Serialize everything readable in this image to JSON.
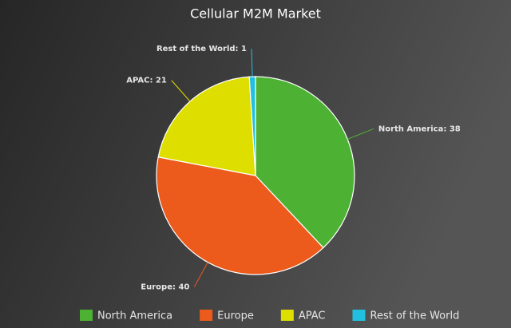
{
  "chart_data": {
    "type": "pie",
    "title": "Cellular M2M Market",
    "categories": [
      "North America",
      "Europe",
      "APAC",
      "Rest of the World"
    ],
    "values": [
      38,
      40,
      21,
      1
    ],
    "value_labels": [
      "North America: 38",
      "Europe: 40",
      "APAC: 21",
      "Rest of the World: 1"
    ],
    "colors": [
      "#4db234",
      "#ec5a1c",
      "#dede00",
      "#22c0e0"
    ],
    "legend": "bottom"
  }
}
